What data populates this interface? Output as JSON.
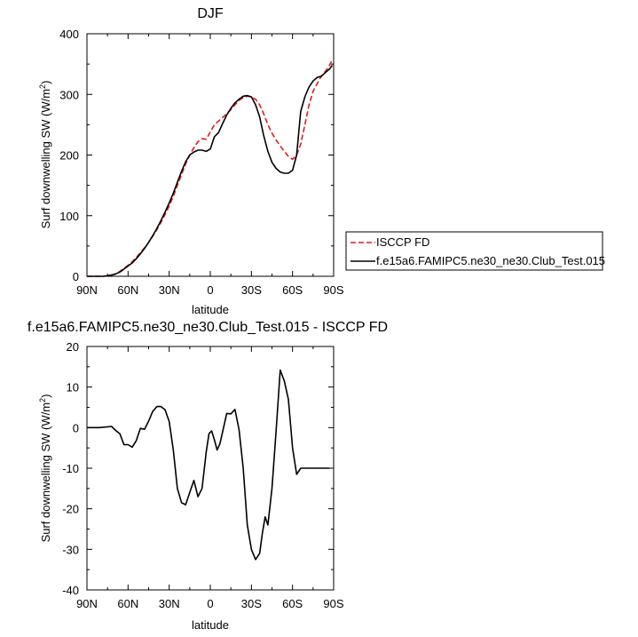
{
  "chart_data": [
    {
      "type": "line",
      "title": "DJF",
      "xlabel": "latitude",
      "ylabel": "Surf downwelling SW (W/m²)",
      "ylabel_main": "Surf downwelling SW (W/m",
      "ylabel_sup": "2",
      "ylabel_end": ")",
      "xlim": [
        90,
        -90
      ],
      "ylim": [
        0,
        400
      ],
      "xticks": [
        90,
        60,
        30,
        0,
        -30,
        -60,
        -90
      ],
      "xtick_labels": [
        "90N",
        "60N",
        "30N",
        "0",
        "30S",
        "60S",
        "90S"
      ],
      "yticks": [
        0,
        100,
        200,
        300,
        400
      ],
      "ytick_labels": [
        "0",
        "100",
        "200",
        "300",
        "400"
      ],
      "legend_placement": "right",
      "series": [
        {
          "name": "ISCCP FD",
          "color": "#e41a1c",
          "dash": "dashed",
          "x": [
            90,
            87,
            84,
            81,
            78,
            75,
            72,
            69,
            66,
            63,
            60,
            57,
            54,
            51,
            48,
            45,
            42,
            39,
            36,
            33,
            30,
            27,
            24,
            21,
            18,
            15,
            12,
            9,
            6,
            3,
            0,
            -3,
            -6,
            -9,
            -12,
            -15,
            -18,
            -21,
            -24,
            -27,
            -30,
            -33,
            -36,
            -39,
            -42,
            -45,
            -48,
            -51,
            -54,
            -57,
            -60,
            -63,
            -66,
            -69,
            -72,
            -75,
            -78,
            -81,
            -84,
            -87,
            -89
          ],
          "y": [
            0,
            0,
            0,
            0,
            0,
            1,
            2,
            4,
            8,
            13,
            18,
            24,
            31,
            39,
            47,
            56,
            66,
            77,
            89,
            102,
            116,
            132,
            150,
            168,
            185,
            200,
            212,
            222,
            227,
            226,
            238,
            250,
            256,
            262,
            268,
            275,
            283,
            290,
            295,
            297,
            296,
            292,
            283,
            268,
            250,
            236,
            225,
            215,
            206,
            198,
            193,
            200,
            218,
            250,
            282,
            305,
            318,
            330,
            338,
            348,
            358
          ]
        },
        {
          "name": "f.e15a6.FAMIPC5.ne30_ne30.Club_Test.015",
          "color": "#000000",
          "dash": "solid",
          "x": [
            90,
            87,
            84,
            81,
            78,
            75,
            72,
            69,
            66,
            63,
            60,
            57,
            54,
            51,
            48,
            45,
            42,
            39,
            36,
            33,
            30,
            27,
            24,
            21,
            18,
            15,
            12,
            9,
            6,
            3,
            0,
            -3,
            -6,
            -9,
            -12,
            -15,
            -18,
            -21,
            -24,
            -27,
            -30,
            -33,
            -36,
            -39,
            -42,
            -45,
            -48,
            -51,
            -54,
            -57,
            -60,
            -63,
            -66,
            -69,
            -72,
            -75,
            -78,
            -81,
            -84,
            -87,
            -89
          ],
          "y": [
            0,
            0,
            0,
            0,
            0,
            1,
            2,
            4,
            7,
            12,
            17,
            22,
            29,
            37,
            46,
            56,
            67,
            79,
            92,
            106,
            121,
            137,
            155,
            173,
            189,
            200,
            205,
            208,
            208,
            206,
            210,
            230,
            237,
            252,
            266,
            277,
            286,
            292,
            297,
            298,
            296,
            283,
            263,
            232,
            206,
            188,
            178,
            172,
            170,
            170,
            175,
            200,
            272,
            296,
            312,
            322,
            328,
            330,
            336,
            342,
            348
          ]
        }
      ]
    },
    {
      "type": "line",
      "title": "f.e15a6.FAMIPC5.ne30_ne30.Club_Test.015 - ISCCP FD",
      "xlabel": "latitude",
      "ylabel": "Surf downwelling SW (W/m²)",
      "ylabel_main": "Surf downwelling SW (W/m",
      "ylabel_sup": "2",
      "ylabel_end": ")",
      "xlim": [
        90,
        -90
      ],
      "ylim": [
        -40,
        20
      ],
      "xticks": [
        90,
        60,
        30,
        0,
        -30,
        -60,
        -90
      ],
      "xtick_labels": [
        "90N",
        "60N",
        "30N",
        "0",
        "30S",
        "60S",
        "90S"
      ],
      "yticks": [
        -40,
        -30,
        -20,
        -10,
        0,
        10,
        20
      ],
      "ytick_labels": [
        "-40",
        "-30",
        "-20",
        "-10",
        "0",
        "10",
        "20"
      ],
      "series": [
        {
          "name": "",
          "color": "#000000",
          "dash": "solid",
          "x": [
            90,
            81,
            72,
            69,
            66,
            63,
            60,
            57,
            54,
            51,
            48,
            45,
            42,
            39,
            36,
            33,
            30,
            27,
            24,
            21,
            18,
            15,
            12,
            9,
            6,
            3,
            1,
            -1,
            -3,
            -5,
            -7,
            -9,
            -12,
            -15,
            -18,
            -21,
            -24,
            -27,
            -30,
            -33,
            -36,
            -38,
            -40,
            -42,
            -45,
            -48,
            -51,
            -54,
            -57,
            -60,
            -63,
            -66,
            -69,
            -72,
            -75,
            -78,
            -81,
            -84,
            -87
          ],
          "y": [
            0,
            0,
            0.3,
            -0.7,
            -1.5,
            -4.2,
            -4.2,
            -4.8,
            -3.2,
            -0.2,
            -0.4,
            1.6,
            4,
            5.2,
            5.2,
            4.4,
            1.5,
            -5.5,
            -15,
            -18.5,
            -19,
            -16,
            -13,
            -17,
            -15,
            -6,
            -1.5,
            -0.8,
            -3,
            -5.5,
            -4,
            -1,
            3.5,
            3.4,
            4.5,
            -0.5,
            -10,
            -24,
            -30,
            -32.5,
            -31,
            -26,
            -22,
            -24,
            -15,
            -1,
            14.2,
            11.5,
            7,
            -5,
            -11.5,
            -10,
            -10,
            -10,
            -10,
            -10,
            -10,
            -10,
            -10
          ]
        }
      ]
    }
  ],
  "legend": {
    "entries": [
      "ISCCP FD",
      "f.e15a6.FAMIPC5.ne30_ne30.Club_Test.015"
    ]
  }
}
